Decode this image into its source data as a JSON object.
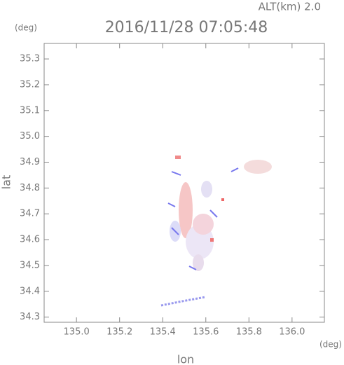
{
  "chart_data": {
    "type": "map",
    "alt_label": "ALT(km) 2.0",
    "title": "2016/11/28 07:05:48",
    "y_unit": "(deg)",
    "x_unit": "(deg)",
    "xlabel": "lon",
    "ylabel": "lat",
    "xlim": [
      134.85,
      136.15
    ],
    "ylim": [
      34.28,
      35.36
    ],
    "xticks": [
      {
        "value": 135.0,
        "label": "135.0"
      },
      135.2,
      135.4,
      135.6,
      135.8,
      {
        "value": 136.0,
        "label": "136.0"
      }
    ],
    "yticks": [
      34.3,
      34.4,
      34.5,
      34.6,
      34.7,
      34.8,
      34.9,
      {
        "value": 35.0,
        "label": "35.0"
      },
      35.1,
      35.2,
      35.3
    ]
  }
}
